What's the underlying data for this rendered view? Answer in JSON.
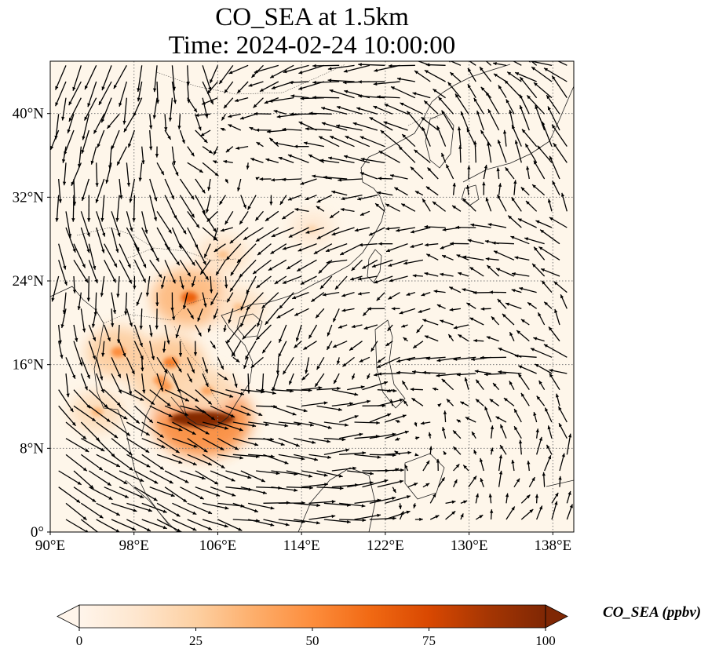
{
  "title_line1": "CO_SEA at 1.5km",
  "title_line2": "Time: 2024-02-24 10:00:00",
  "map": {
    "lon_range": [
      90,
      140
    ],
    "lat_range": [
      0,
      45
    ],
    "lon_ticks": [
      {
        "value": 90,
        "label": "90°E"
      },
      {
        "value": 98,
        "label": "98°E"
      },
      {
        "value": 106,
        "label": "106°E"
      },
      {
        "value": 114,
        "label": "114°E"
      },
      {
        "value": 122,
        "label": "122°E"
      },
      {
        "value": 130,
        "label": "130°E"
      },
      {
        "value": 138,
        "label": "138°E"
      }
    ],
    "lat_ticks": [
      {
        "value": 0,
        "label": "0°"
      },
      {
        "value": 8,
        "label": "8°N"
      },
      {
        "value": 16,
        "label": "16°N"
      },
      {
        "value": 24,
        "label": "24°N"
      },
      {
        "value": 32,
        "label": "32°N"
      },
      {
        "value": 40,
        "label": "40°N"
      }
    ],
    "gridlines": true,
    "field_hotspots": [
      {
        "lon": 104.5,
        "lat": 10.8,
        "value": 98
      },
      {
        "lon": 103.3,
        "lat": 22.4,
        "value": 65
      },
      {
        "lon": 101.5,
        "lat": 16.2,
        "value": 55
      },
      {
        "lon": 100.5,
        "lat": 14.5,
        "value": 45
      },
      {
        "lon": 96.5,
        "lat": 17.2,
        "value": 50
      },
      {
        "lon": 101.0,
        "lat": 13.9,
        "value": 45
      },
      {
        "lon": 106.5,
        "lat": 26.5,
        "value": 30
      },
      {
        "lon": 94.5,
        "lat": 11.5,
        "value": 35
      },
      {
        "lon": 105.0,
        "lat": 13.5,
        "value": 40
      },
      {
        "lon": 108.0,
        "lat": 21.5,
        "value": 30
      },
      {
        "lon": 115.0,
        "lat": 29.0,
        "value": 22
      }
    ]
  },
  "colorbar": {
    "label": "CO_SEA (ppbv)",
    "min": 0,
    "max": 100,
    "extend": "both",
    "ticks": [
      {
        "value": 0,
        "label": "0"
      },
      {
        "value": 25,
        "label": "25"
      },
      {
        "value": 50,
        "label": "50"
      },
      {
        "value": 75,
        "label": "75"
      },
      {
        "value": 100,
        "label": "100"
      }
    ],
    "colormap": [
      "#fff5eb",
      "#fee6ce",
      "#fdd0a2",
      "#fdae6b",
      "#fd8d3c",
      "#f16913",
      "#d94801",
      "#a63603",
      "#7f2704"
    ]
  },
  "colors": {
    "land_background": "#fef6ea",
    "vector_color": "#000000",
    "gridline_color": "#7a7a7a",
    "coastline_color": "#222222"
  }
}
